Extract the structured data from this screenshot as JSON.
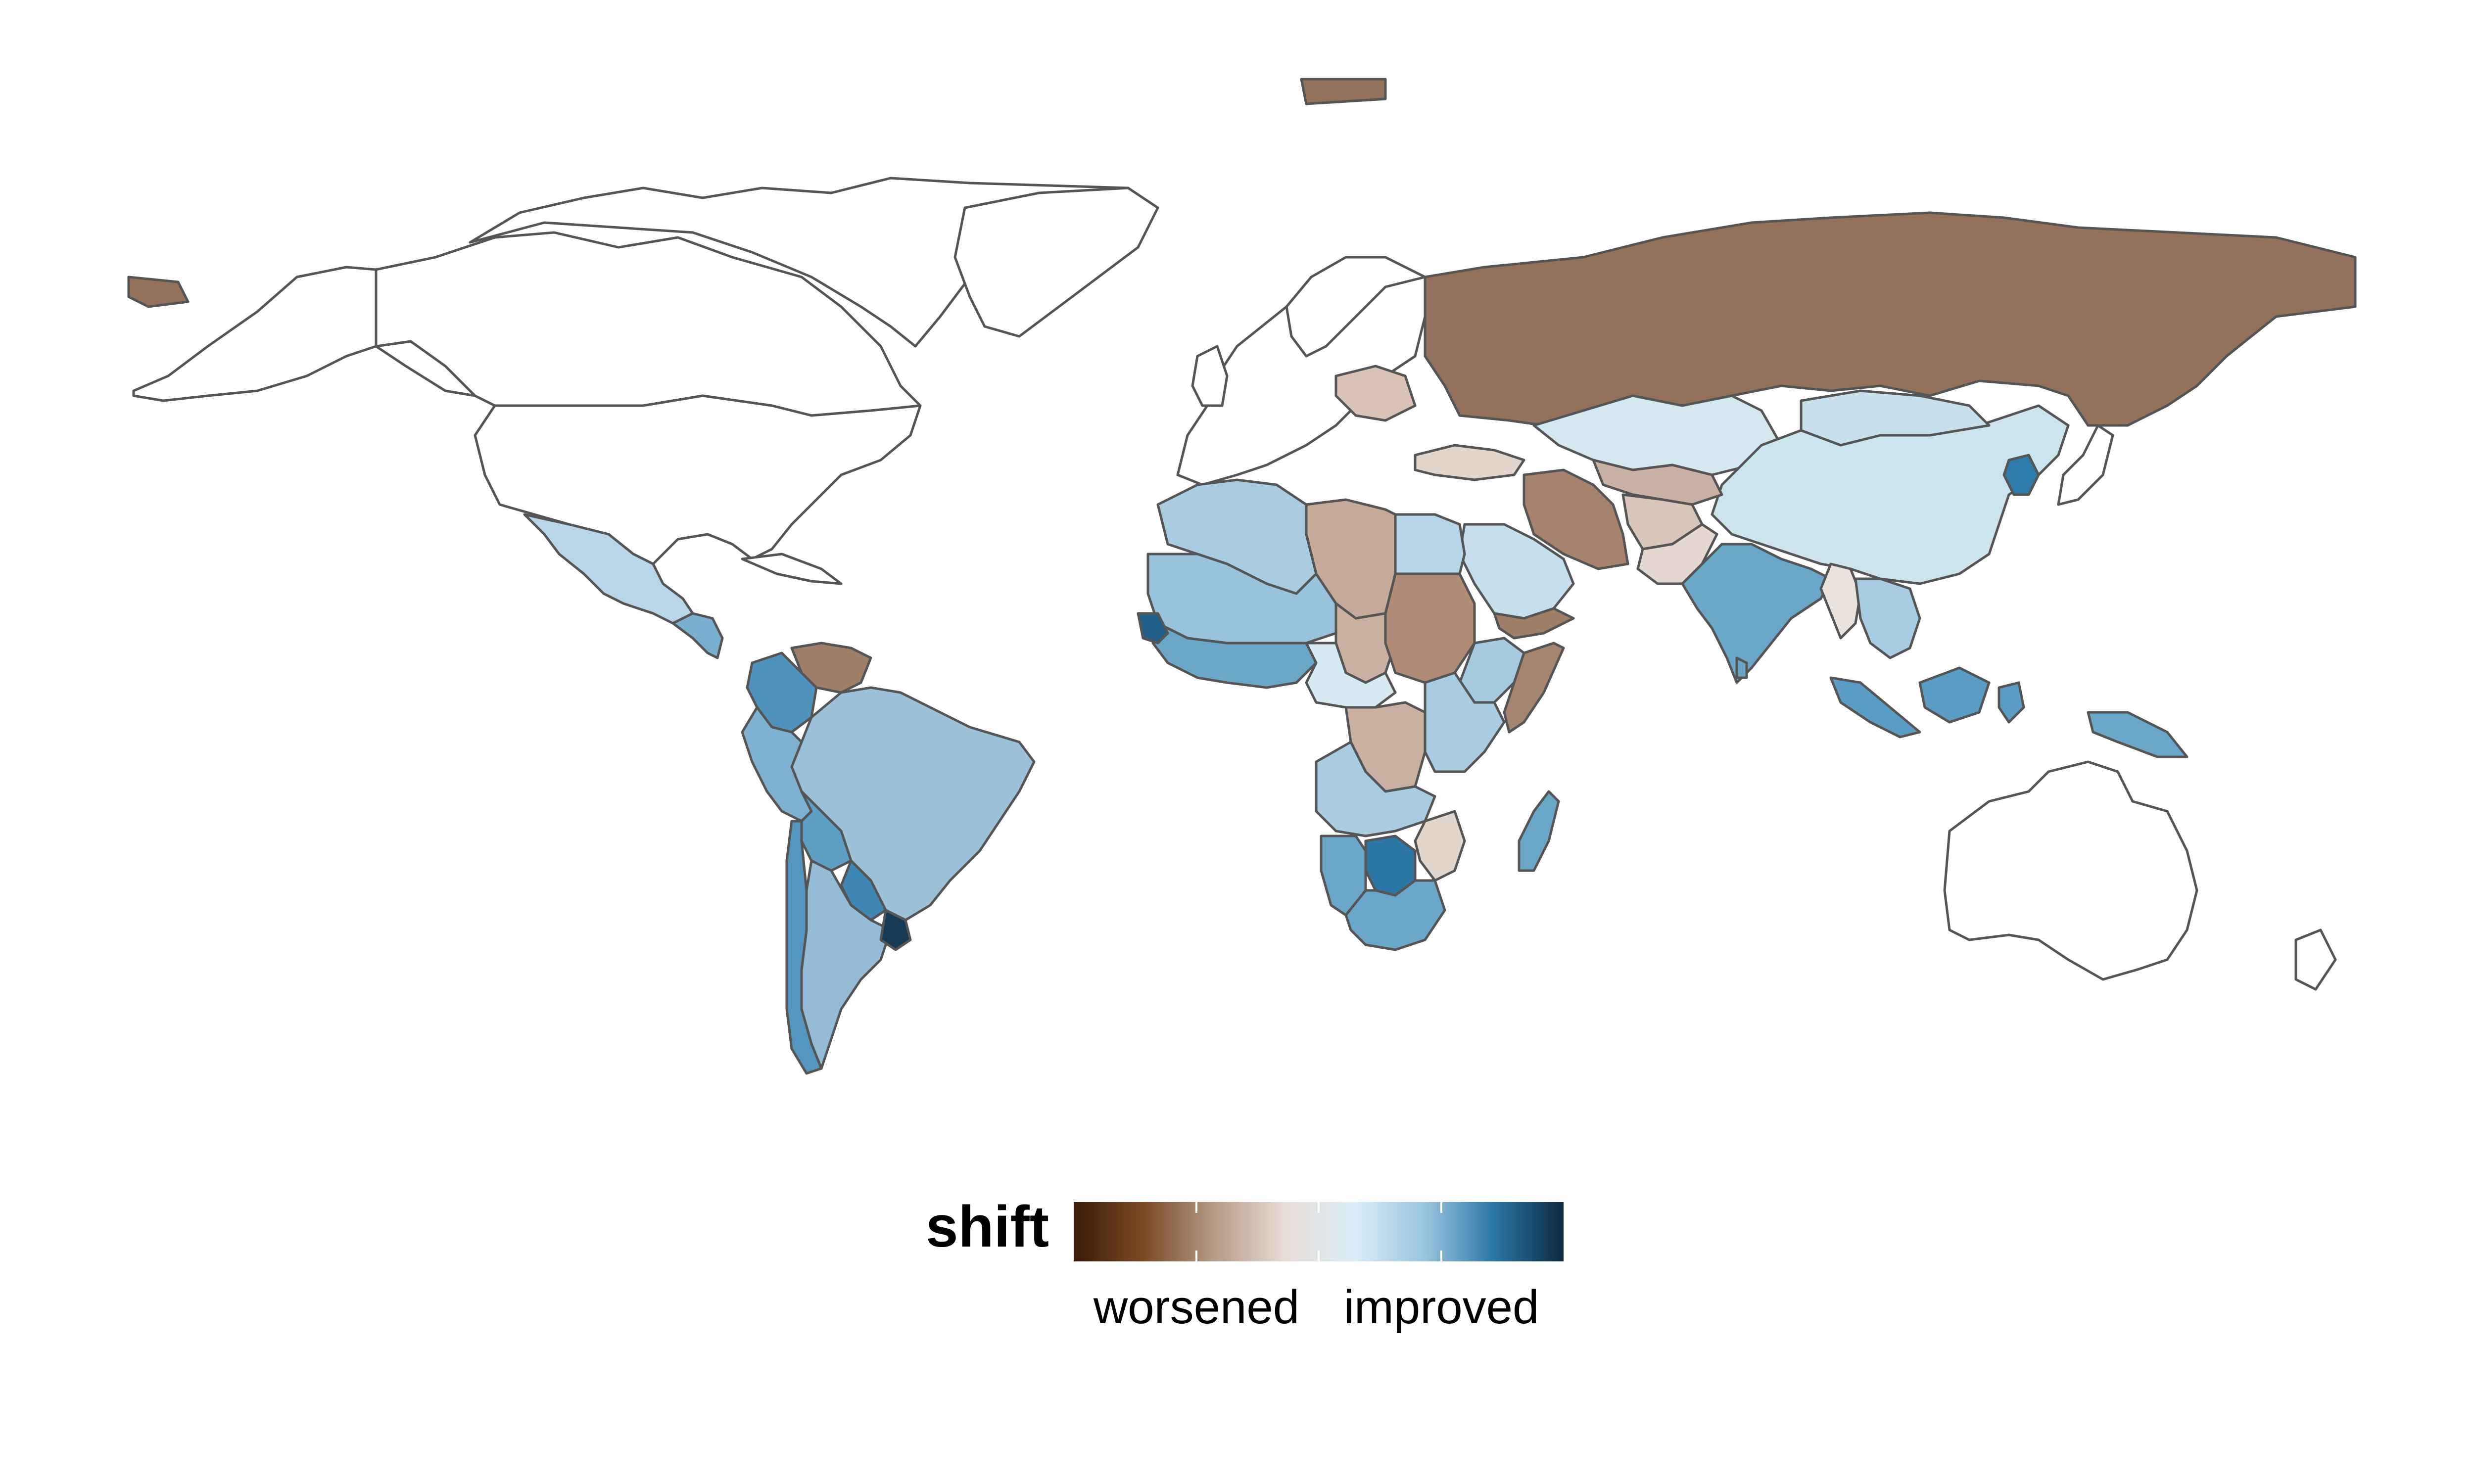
{
  "legend": {
    "title": "shift",
    "label_low": "worsened",
    "label_high": "improved",
    "gradient": [
      "#3b1a05",
      "#7a4a26",
      "#b59a86",
      "#e8dcd6",
      "#daeef8",
      "#9cc6e0",
      "#2b77a6",
      "#0d2a40"
    ]
  },
  "palette": {
    "no_data": "#ffffff",
    "border": "#555555"
  },
  "regions": [
    {
      "name": "russia",
      "value": -0.7,
      "color": "#94715a"
    },
    {
      "name": "kazakhstan",
      "value": 0.1,
      "color": "#d3e8f1"
    },
    {
      "name": "china",
      "value": 0.15,
      "color": "#cce4ee"
    },
    {
      "name": "mongolia",
      "value": 0.2,
      "color": "#c8e0ec"
    },
    {
      "name": "central-asia",
      "value": -0.2,
      "color": "#c8b0a2"
    },
    {
      "name": "iran",
      "value": -0.5,
      "color": "#a7826d"
    },
    {
      "name": "afghanistan",
      "value": -0.25,
      "color": "#d9c6ba"
    },
    {
      "name": "pakistan",
      "value": -0.1,
      "color": "#e4d8d1"
    },
    {
      "name": "india",
      "value": 0.5,
      "color": "#6aa6c8"
    },
    {
      "name": "myanmar",
      "value": -0.05,
      "color": "#eae2dd"
    },
    {
      "name": "southeast-asia",
      "value": 0.3,
      "color": "#a8cde2"
    },
    {
      "name": "korea",
      "value": 0.75,
      "color": "#2e7bab"
    },
    {
      "name": "indonesia",
      "value": 0.55,
      "color": "#5b9cc4"
    },
    {
      "name": "papua",
      "value": 0.5,
      "color": "#6aa6c8"
    },
    {
      "name": "saudi-arabia",
      "value": 0.2,
      "color": "#c6dfec"
    },
    {
      "name": "yemen-oman",
      "value": -0.6,
      "color": "#a07f68"
    },
    {
      "name": "turkey",
      "value": -0.15,
      "color": "#e2d5cc"
    },
    {
      "name": "eastern-europe",
      "value": -0.15,
      "color": "#d8c3b6"
    },
    {
      "name": "mexico",
      "value": 0.25,
      "color": "#b8d6e8"
    },
    {
      "name": "central-america",
      "value": 0.45,
      "color": "#7ab0cf"
    },
    {
      "name": "venezuela",
      "value": -0.6,
      "color": "#a07f68"
    },
    {
      "name": "colombia",
      "value": 0.6,
      "color": "#4f93bd"
    },
    {
      "name": "brazil",
      "value": 0.35,
      "color": "#9cc0d8"
    },
    {
      "name": "peru",
      "value": 0.45,
      "color": "#7eb1cf"
    },
    {
      "name": "bolivia",
      "value": 0.55,
      "color": "#5e9fc6"
    },
    {
      "name": "paraguay",
      "value": 0.65,
      "color": "#3f88b5"
    },
    {
      "name": "argentina",
      "value": 0.35,
      "color": "#94bcd6"
    },
    {
      "name": "chile",
      "value": 0.6,
      "color": "#5496c0"
    },
    {
      "name": "uruguay",
      "value": 0.95,
      "color": "#163a56"
    },
    {
      "name": "egypt",
      "value": 0.25,
      "color": "#b6d5e7"
    },
    {
      "name": "libya",
      "value": -0.35,
      "color": "#c5aa99"
    },
    {
      "name": "maghreb",
      "value": 0.3,
      "color": "#a9cce1"
    },
    {
      "name": "sahel",
      "value": 0.35,
      "color": "#99c2dc"
    },
    {
      "name": "chad",
      "value": -0.3,
      "color": "#c9b0a0"
    },
    {
      "name": "sudan",
      "value": -0.45,
      "color": "#b08c76"
    },
    {
      "name": "ethiopia",
      "value": 0.3,
      "color": "#a6cbe1"
    },
    {
      "name": "somalia",
      "value": -0.55,
      "color": "#a68570"
    },
    {
      "name": "west-africa",
      "value": 0.55,
      "color": "#6aa6c8"
    },
    {
      "name": "senegal",
      "value": 0.85,
      "color": "#1f5f8a"
    },
    {
      "name": "central-africa",
      "value": 0.1,
      "color": "#d6eaf3"
    },
    {
      "name": "congo",
      "value": -0.3,
      "color": "#c9b0a0"
    },
    {
      "name": "east-africa",
      "value": 0.3,
      "color": "#a9cce1"
    },
    {
      "name": "angola-zambia",
      "value": 0.3,
      "color": "#a9cce1"
    },
    {
      "name": "namibia",
      "value": 0.5,
      "color": "#6aa6c8"
    },
    {
      "name": "botswana",
      "value": 0.8,
      "color": "#2c76a5"
    },
    {
      "name": "zimbabwe-mozambique",
      "value": -0.1,
      "color": "#e2d5cc"
    },
    {
      "name": "south-africa",
      "value": 0.5,
      "color": "#6aa6c8"
    },
    {
      "name": "madagascar",
      "value": 0.5,
      "color": "#6aa6c8"
    }
  ]
}
